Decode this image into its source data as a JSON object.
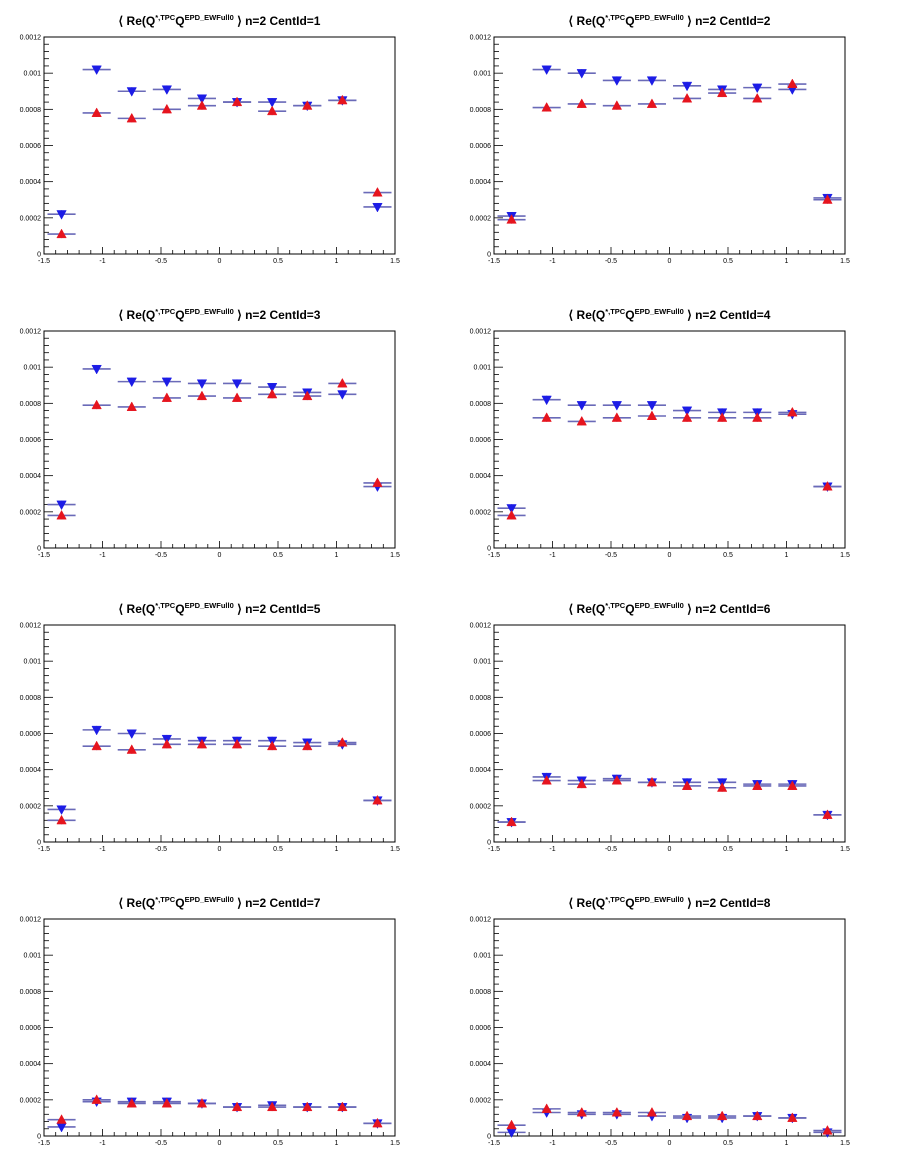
{
  "chart_data": [
    {
      "type": "scatter",
      "title": {
        "prefix": "⟨ Re(Q",
        "sup1": "*,TPC",
        "mid": "Q",
        "sup2": "EPD_EWFull0",
        "suffix": "⟩  n=2  CentId=1"
      },
      "xlim": [
        -1.5,
        1.5
      ],
      "ylim": [
        0,
        0.0012
      ],
      "x_ticks": [
        "-1.5",
        "-1",
        "-0.5",
        "0",
        "0.5",
        "1",
        "1.5"
      ],
      "y_ticks": [
        "0",
        "0.0002",
        "0.0004",
        "0.0006",
        "0.0008",
        "0.001",
        "0.0012"
      ],
      "x": [
        -1.35,
        -1.05,
        -0.75,
        -0.45,
        -0.15,
        0.15,
        0.45,
        0.75,
        1.05,
        1.35
      ],
      "series": [
        {
          "marker": "triangle-down",
          "color": "#1c1ce6",
          "values": [
            0.00022,
            0.00102,
            0.0009,
            0.00091,
            0.00086,
            0.00084,
            0.00084,
            0.00082,
            0.00085,
            0.00026
          ]
        },
        {
          "marker": "triangle-up",
          "color": "#e6141e",
          "values": [
            0.00011,
            0.00078,
            0.00075,
            0.0008,
            0.00082,
            0.00084,
            0.00079,
            0.00082,
            0.00085,
            0.00034
          ]
        }
      ]
    },
    {
      "type": "scatter",
      "title": {
        "prefix": "⟨ Re(Q",
        "sup1": "*,TPC",
        "mid": "Q",
        "sup2": "EPD_EWFull0",
        "suffix": "⟩  n=2  CentId=2"
      },
      "xlim": [
        -1.5,
        1.5
      ],
      "ylim": [
        0,
        0.0012
      ],
      "x_ticks": [
        "-1.5",
        "-1",
        "-0.5",
        "0",
        "0.5",
        "1",
        "1.5"
      ],
      "y_ticks": [
        "0",
        "0.0002",
        "0.0004",
        "0.0006",
        "0.0008",
        "0.001",
        "0.0012"
      ],
      "x": [
        -1.35,
        -1.05,
        -0.75,
        -0.45,
        -0.15,
        0.15,
        0.45,
        0.75,
        1.05,
        1.35
      ],
      "series": [
        {
          "marker": "triangle-down",
          "color": "#1c1ce6",
          "values": [
            0.00021,
            0.00102,
            0.001,
            0.00096,
            0.00096,
            0.00093,
            0.00091,
            0.00092,
            0.00091,
            0.00031
          ]
        },
        {
          "marker": "triangle-up",
          "color": "#e6141e",
          "values": [
            0.00019,
            0.00081,
            0.00083,
            0.00082,
            0.00083,
            0.00086,
            0.00089,
            0.00086,
            0.00094,
            0.0003
          ]
        }
      ]
    },
    {
      "type": "scatter",
      "title": {
        "prefix": "⟨ Re(Q",
        "sup1": "*,TPC",
        "mid": "Q",
        "sup2": "EPD_EWFull0",
        "suffix": "⟩  n=2  CentId=3"
      },
      "xlim": [
        -1.5,
        1.5
      ],
      "ylim": [
        0,
        0.0012
      ],
      "x_ticks": [
        "-1.5",
        "-1",
        "-0.5",
        "0",
        "0.5",
        "1",
        "1.5"
      ],
      "y_ticks": [
        "0",
        "0.0002",
        "0.0004",
        "0.0006",
        "0.0008",
        "0.001",
        "0.0012"
      ],
      "x": [
        -1.35,
        -1.05,
        -0.75,
        -0.45,
        -0.15,
        0.15,
        0.45,
        0.75,
        1.05,
        1.35
      ],
      "series": [
        {
          "marker": "triangle-down",
          "color": "#1c1ce6",
          "values": [
            0.00024,
            0.00099,
            0.00092,
            0.00092,
            0.00091,
            0.00091,
            0.00089,
            0.00086,
            0.00085,
            0.00034
          ]
        },
        {
          "marker": "triangle-up",
          "color": "#e6141e",
          "values": [
            0.00018,
            0.00079,
            0.00078,
            0.00083,
            0.00084,
            0.00083,
            0.00085,
            0.00084,
            0.00091,
            0.00036
          ]
        }
      ]
    },
    {
      "type": "scatter",
      "title": {
        "prefix": "⟨ Re(Q",
        "sup1": "*,TPC",
        "mid": "Q",
        "sup2": "EPD_EWFull0",
        "suffix": "⟩  n=2  CentId=4"
      },
      "xlim": [
        -1.5,
        1.5
      ],
      "ylim": [
        0,
        0.0012
      ],
      "x_ticks": [
        "-1.5",
        "-1",
        "-0.5",
        "0",
        "0.5",
        "1",
        "1.5"
      ],
      "y_ticks": [
        "0",
        "0.0002",
        "0.0004",
        "0.0006",
        "0.0008",
        "0.001",
        "0.0012"
      ],
      "x": [
        -1.35,
        -1.05,
        -0.75,
        -0.45,
        -0.15,
        0.15,
        0.45,
        0.75,
        1.05,
        1.35
      ],
      "series": [
        {
          "marker": "triangle-down",
          "color": "#1c1ce6",
          "values": [
            0.00022,
            0.00082,
            0.00079,
            0.00079,
            0.00079,
            0.00076,
            0.00075,
            0.00075,
            0.00074,
            0.00034
          ]
        },
        {
          "marker": "triangle-up",
          "color": "#e6141e",
          "values": [
            0.00018,
            0.00072,
            0.0007,
            0.00072,
            0.00073,
            0.00072,
            0.00072,
            0.00072,
            0.00075,
            0.00034
          ]
        }
      ]
    },
    {
      "type": "scatter",
      "title": {
        "prefix": "⟨ Re(Q",
        "sup1": "*,TPC",
        "mid": "Q",
        "sup2": "EPD_EWFull0",
        "suffix": "⟩  n=2  CentId=5"
      },
      "xlim": [
        -1.5,
        1.5
      ],
      "ylim": [
        0,
        0.0012
      ],
      "x_ticks": [
        "-1.5",
        "-1",
        "-0.5",
        "0",
        "0.5",
        "1",
        "1.5"
      ],
      "y_ticks": [
        "0",
        "0.0002",
        "0.0004",
        "0.0006",
        "0.0008",
        "0.001",
        "0.0012"
      ],
      "x": [
        -1.35,
        -1.05,
        -0.75,
        -0.45,
        -0.15,
        0.15,
        0.45,
        0.75,
        1.05,
        1.35
      ],
      "series": [
        {
          "marker": "triangle-down",
          "color": "#1c1ce6",
          "values": [
            0.00018,
            0.00062,
            0.0006,
            0.00057,
            0.00056,
            0.00056,
            0.00056,
            0.00055,
            0.00054,
            0.00023
          ]
        },
        {
          "marker": "triangle-up",
          "color": "#e6141e",
          "values": [
            0.00012,
            0.00053,
            0.00051,
            0.00054,
            0.00054,
            0.00054,
            0.00053,
            0.00053,
            0.00055,
            0.00023
          ]
        }
      ]
    },
    {
      "type": "scatter",
      "title": {
        "prefix": "⟨ Re(Q",
        "sup1": "*,TPC",
        "mid": "Q",
        "sup2": "EPD_EWFull0",
        "suffix": "⟩  n=2  CentId=6"
      },
      "xlim": [
        -1.5,
        1.5
      ],
      "ylim": [
        0,
        0.0012
      ],
      "x_ticks": [
        "-1.5",
        "-1",
        "-0.5",
        "0",
        "0.5",
        "1",
        "1.5"
      ],
      "y_ticks": [
        "0",
        "0.0002",
        "0.0004",
        "0.0006",
        "0.0008",
        "0.001",
        "0.0012"
      ],
      "x": [
        -1.35,
        -1.05,
        -0.75,
        -0.45,
        -0.15,
        0.15,
        0.45,
        0.75,
        1.05,
        1.35
      ],
      "series": [
        {
          "marker": "triangle-down",
          "color": "#1c1ce6",
          "values": [
            0.00011,
            0.00036,
            0.00034,
            0.00035,
            0.00033,
            0.00033,
            0.00033,
            0.00032,
            0.00032,
            0.00015
          ]
        },
        {
          "marker": "triangle-up",
          "color": "#e6141e",
          "values": [
            0.00011,
            0.00034,
            0.00032,
            0.00034,
            0.00033,
            0.00031,
            0.0003,
            0.00031,
            0.00031,
            0.00015
          ]
        }
      ]
    },
    {
      "type": "scatter",
      "title": {
        "prefix": "⟨ Re(Q",
        "sup1": "*,TPC",
        "mid": "Q",
        "sup2": "EPD_EWFull0",
        "suffix": "⟩  n=2  CentId=7"
      },
      "xlim": [
        -1.5,
        1.5
      ],
      "ylim": [
        0,
        0.0012
      ],
      "x_ticks": [
        "-1.5",
        "-1",
        "-0.5",
        "0",
        "0.5",
        "1",
        "1.5"
      ],
      "y_ticks": [
        "0",
        "0.0002",
        "0.0004",
        "0.0006",
        "0.0008",
        "0.001",
        "0.0012"
      ],
      "x": [
        -1.35,
        -1.05,
        -0.75,
        -0.45,
        -0.15,
        0.15,
        0.45,
        0.75,
        1.05,
        1.35
      ],
      "series": [
        {
          "marker": "triangle-down",
          "color": "#1c1ce6",
          "values": [
            5e-05,
            0.00019,
            0.00019,
            0.00019,
            0.00018,
            0.00016,
            0.00017,
            0.00016,
            0.00016,
            7e-05
          ]
        },
        {
          "marker": "triangle-up",
          "color": "#e6141e",
          "values": [
            9e-05,
            0.0002,
            0.00018,
            0.00018,
            0.00018,
            0.00016,
            0.00016,
            0.00016,
            0.00016,
            7e-05
          ]
        }
      ]
    },
    {
      "type": "scatter",
      "title": {
        "prefix": "⟨ Re(Q",
        "sup1": "*,TPC",
        "mid": "Q",
        "sup2": "EPD_EWFull0",
        "suffix": "⟩  n=2  CentId=8"
      },
      "xlim": [
        -1.5,
        1.5
      ],
      "ylim": [
        0,
        0.0012
      ],
      "x_ticks": [
        "-1.5",
        "-1",
        "-0.5",
        "0",
        "0.5",
        "1",
        "1.5"
      ],
      "y_ticks": [
        "0",
        "0.0002",
        "0.0004",
        "0.0006",
        "0.0008",
        "0.001",
        "0.0012"
      ],
      "x": [
        -1.35,
        -1.05,
        -0.75,
        -0.45,
        -0.15,
        0.15,
        0.45,
        0.75,
        1.05,
        1.35
      ],
      "series": [
        {
          "marker": "triangle-down",
          "color": "#1c1ce6",
          "values": [
            2e-05,
            0.00013,
            0.00012,
            0.00012,
            0.00011,
            0.0001,
            0.0001,
            0.00011,
            0.0001,
            2e-05
          ]
        },
        {
          "marker": "triangle-up",
          "color": "#e6141e",
          "values": [
            6e-05,
            0.00015,
            0.00013,
            0.00013,
            0.00013,
            0.00011,
            0.00011,
            0.00011,
            0.0001,
            3e-05
          ]
        }
      ]
    }
  ]
}
